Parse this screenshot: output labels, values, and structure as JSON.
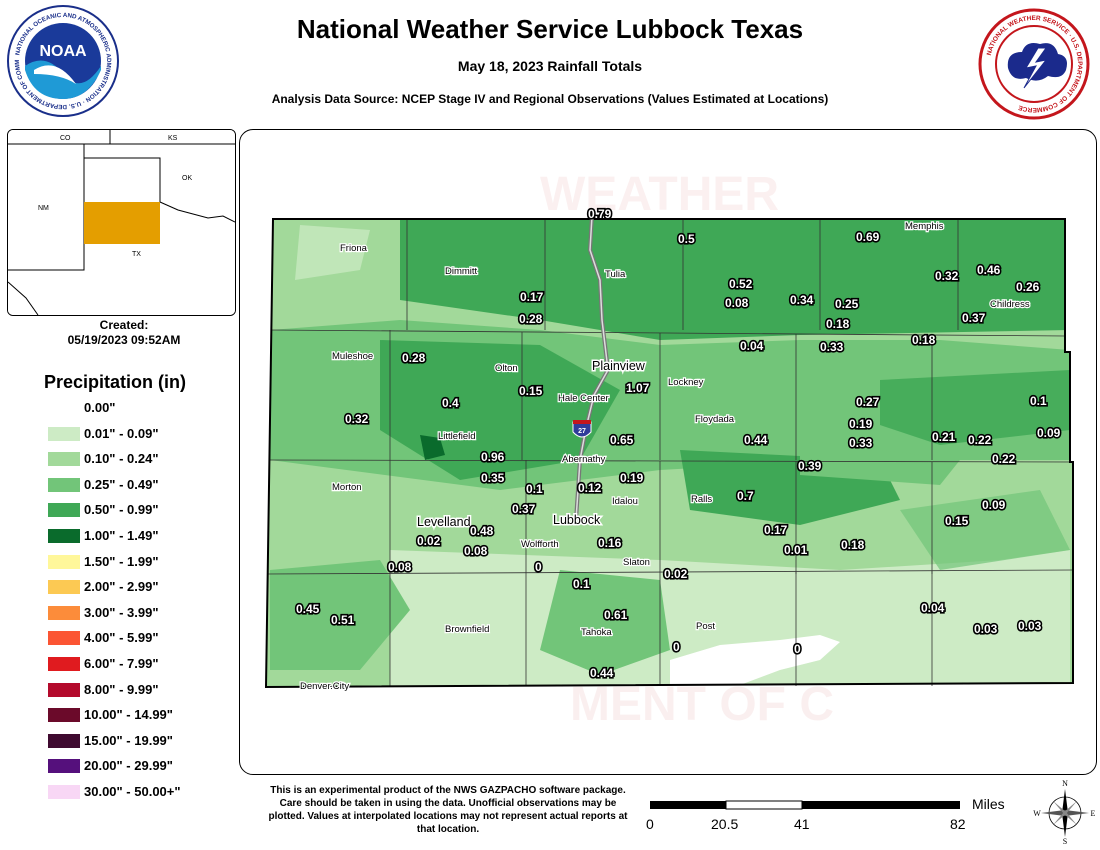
{
  "header": {
    "title": "National Weather Service Lubbock Texas",
    "subtitle": "May 18, 2023 Rainfall Totals",
    "source": "Analysis Data Source: NCEP Stage IV and Regional Observations (Values Estimated at Locations)"
  },
  "logos": {
    "noaa": {
      "center_text": "NOAA",
      "ring_text": "NATIONAL OCEANIC AND ATMOSPHERIC ADMINISTRATION · U.S. DEPARTMENT OF COMMERCE"
    },
    "nws": {
      "ring_text": "NATIONAL WEATHER SERVICE · U.S. DEPARTMENT OF COMMERCE"
    }
  },
  "inset": {
    "labels": {
      "co": "CO",
      "ks": "KS",
      "nm": "NM",
      "ok": "OK",
      "tx": "TX"
    },
    "highlight_color": "#E49E00"
  },
  "created": {
    "label": "Created:",
    "timestamp": "05/19/2023 09:52AM"
  },
  "legend": {
    "title": "Precipitation (in)",
    "items": [
      {
        "label": "0.00\"",
        "color": "#FFFFFF"
      },
      {
        "label": "0.01\" - 0.09\"",
        "color": "#CDEBC5"
      },
      {
        "label": "0.10\" - 0.24\"",
        "color": "#A2D99A"
      },
      {
        "label": "0.25\" - 0.49\"",
        "color": "#72C579"
      },
      {
        "label": "0.50\" - 0.99\"",
        "color": "#3FA856"
      },
      {
        "label": "1.00\" - 1.49\"",
        "color": "#0A6B2C"
      },
      {
        "label": "1.50\" - 1.99\"",
        "color": "#FFF79A"
      },
      {
        "label": "2.00\" - 2.99\"",
        "color": "#FCC953"
      },
      {
        "label": "3.00\" - 3.99\"",
        "color": "#FC8C3A"
      },
      {
        "label": "4.00\" - 5.99\"",
        "color": "#FB5533"
      },
      {
        "label": "6.00\" - 7.99\"",
        "color": "#E01B1F"
      },
      {
        "label": "8.00\" - 9.99\"",
        "color": "#B40A2C"
      },
      {
        "label": "10.00\" - 14.99\"",
        "color": "#6B0A2A"
      },
      {
        "label": "15.00\" - 19.99\"",
        "color": "#3F0A30"
      },
      {
        "label": "20.00\" - 29.99\"",
        "color": "#55107C"
      },
      {
        "label": "30.00\" - 50.00+\"",
        "color": "#F8D7F5"
      }
    ]
  },
  "map": {
    "towns": [
      {
        "name": "Friona"
      },
      {
        "name": "Dimmitt"
      },
      {
        "name": "Tulia"
      },
      {
        "name": "Memphis"
      },
      {
        "name": "Childress"
      },
      {
        "name": "Muleshoe"
      },
      {
        "name": "Olton"
      },
      {
        "name": "Plainview"
      },
      {
        "name": "Hale Center"
      },
      {
        "name": "Lockney"
      },
      {
        "name": "Floydada"
      },
      {
        "name": "Littlefield"
      },
      {
        "name": "Abernathy"
      },
      {
        "name": "Morton"
      },
      {
        "name": "Levelland"
      },
      {
        "name": "Lubbock"
      },
      {
        "name": "Idalou"
      },
      {
        "name": "Ralls"
      },
      {
        "name": "Wolfforth"
      },
      {
        "name": "Slaton"
      },
      {
        "name": "Brownfield"
      },
      {
        "name": "Tahoka"
      },
      {
        "name": "Post"
      },
      {
        "name": "Denver.City"
      }
    ],
    "highway_shield": "27",
    "observations": [
      "0.79",
      "0.5",
      "0.69",
      "0.52",
      "0.32",
      "0.46",
      "0.26",
      "0.17",
      "0.08",
      "0.34",
      "0.25",
      "0.28",
      "0.18",
      "0.37",
      "0.28",
      "0.04",
      "0.33",
      "0.18",
      "1.07",
      "0.15",
      "0.4",
      "0.32",
      "0.27",
      "0.19",
      "0.1",
      "0.65",
      "0.44",
      "0.33",
      "0.21",
      "0.22",
      "0.09",
      "0.96",
      "0.39",
      "0.22",
      "0.35",
      "0.1",
      "0.12",
      "0.19",
      "0.7",
      "0.37",
      "0.09",
      "0.48",
      "0.15",
      "0.02",
      "0.08",
      "0.16",
      "0.17",
      "0.01",
      "0.18",
      "0.08",
      "0",
      "0.02",
      "0.1",
      "0.45",
      "0.51",
      "0.61",
      "0.04",
      "0.03",
      "0.03",
      "0",
      "0",
      "0.44"
    ]
  },
  "footer": {
    "disclaimer": "This is an experimental product of the NWS GAZPACHO software package. Care should be taken in using the data. Unofficial observations may be plotted. Values at interpolated locations may not represent actual reports at that location.",
    "scale": {
      "unit": "Miles",
      "ticks": [
        "0",
        "20.5",
        "41",
        "82"
      ]
    },
    "compass": {
      "n": "N",
      "s": "S",
      "e": "E",
      "w": "W"
    }
  }
}
